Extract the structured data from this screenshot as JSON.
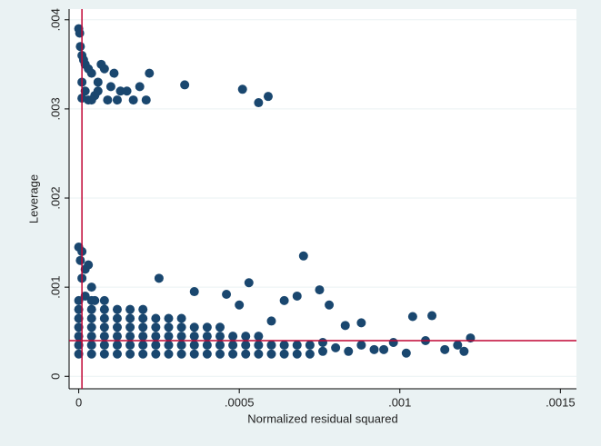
{
  "chart_data": {
    "type": "scatter",
    "x_label": "Normalized residual squared",
    "y_label": "Leverage",
    "color": "#1a476f",
    "reference_color": "#c10534",
    "reference_x": 1e-05,
    "reference_y": 0.0004,
    "xlim": [
      -3e-05,
      0.00155
    ],
    "ylim": [
      -0.00014,
      0.00412
    ],
    "xticks": [
      0,
      {
        "value": 0.0005,
        "label": ".0005"
      },
      {
        "value": 0.001,
        "label": ".001"
      },
      {
        "value": 0.0015,
        "label": ".0015"
      }
    ],
    "yticks": [
      0,
      {
        "value": 0.001,
        "label": ".001"
      },
      {
        "value": 0.002,
        "label": ".002"
      },
      {
        "value": 0.003,
        "label": ".003"
      },
      {
        "value": 0.004,
        "label": ".004"
      }
    ],
    "grid": true,
    "points": [
      [
        0,
        0.0039
      ],
      [
        3e-06,
        0.00385
      ],
      [
        5e-06,
        0.0037
      ],
      [
        1e-05,
        0.0036
      ],
      [
        1.5e-05,
        0.00355
      ],
      [
        2e-05,
        0.0035
      ],
      [
        3e-05,
        0.00345
      ],
      [
        4e-05,
        0.0034
      ],
      [
        1e-05,
        0.0033
      ],
      [
        2e-05,
        0.0032
      ],
      [
        3e-05,
        0.0031
      ],
      [
        5e-05,
        0.00315
      ],
      [
        6e-05,
        0.0033
      ],
      [
        7e-05,
        0.0035
      ],
      [
        8e-05,
        0.00345
      ],
      [
        9e-05,
        0.0031
      ],
      [
        0.0001,
        0.00325
      ],
      [
        0.00011,
        0.0034
      ],
      [
        0.00012,
        0.0031
      ],
      [
        0.00013,
        0.0032
      ],
      [
        0.00015,
        0.0032
      ],
      [
        0.00017,
        0.0031
      ],
      [
        0.00019,
        0.00325
      ],
      [
        0.00021,
        0.0031
      ],
      [
        0.00022,
        0.0034
      ],
      [
        0.00033,
        0.00327
      ],
      [
        0.00051,
        0.00322
      ],
      [
        0.00056,
        0.00307
      ],
      [
        0.00059,
        0.00314
      ],
      [
        4e-05,
        0.0031
      ],
      [
        1e-05,
        0.00312
      ],
      [
        6e-05,
        0.0032
      ],
      [
        0,
        0.00145
      ],
      [
        1e-05,
        0.0014
      ],
      [
        5e-06,
        0.0013
      ],
      [
        2e-05,
        0.0012
      ],
      [
        3e-05,
        0.00125
      ],
      [
        1e-05,
        0.0011
      ],
      [
        4e-05,
        0.001
      ],
      [
        2e-05,
        0.0009
      ],
      [
        5e-05,
        0.00085
      ],
      [
        0,
        0.00025
      ],
      [
        0,
        0.00035
      ],
      [
        0,
        0.00045
      ],
      [
        0,
        0.00055
      ],
      [
        0,
        0.00065
      ],
      [
        0,
        0.00075
      ],
      [
        0,
        0.00085
      ],
      [
        4e-05,
        0.00025
      ],
      [
        4e-05,
        0.00035
      ],
      [
        4e-05,
        0.00045
      ],
      [
        4e-05,
        0.00055
      ],
      [
        4e-05,
        0.00065
      ],
      [
        4e-05,
        0.00075
      ],
      [
        4e-05,
        0.00085
      ],
      [
        8e-05,
        0.00025
      ],
      [
        8e-05,
        0.00035
      ],
      [
        8e-05,
        0.00045
      ],
      [
        8e-05,
        0.00055
      ],
      [
        8e-05,
        0.00065
      ],
      [
        8e-05,
        0.00075
      ],
      [
        8e-05,
        0.00085
      ],
      [
        0.00012,
        0.00025
      ],
      [
        0.00012,
        0.00035
      ],
      [
        0.00012,
        0.00045
      ],
      [
        0.00012,
        0.00055
      ],
      [
        0.00012,
        0.00065
      ],
      [
        0.00012,
        0.00075
      ],
      [
        0.00016,
        0.00025
      ],
      [
        0.00016,
        0.00035
      ],
      [
        0.00016,
        0.00045
      ],
      [
        0.00016,
        0.00055
      ],
      [
        0.00016,
        0.00065
      ],
      [
        0.00016,
        0.00075
      ],
      [
        0.0002,
        0.00025
      ],
      [
        0.0002,
        0.00035
      ],
      [
        0.0002,
        0.00045
      ],
      [
        0.0002,
        0.00055
      ],
      [
        0.0002,
        0.00065
      ],
      [
        0.0002,
        0.00075
      ],
      [
        0.00024,
        0.00025
      ],
      [
        0.00024,
        0.00035
      ],
      [
        0.00024,
        0.00045
      ],
      [
        0.00024,
        0.00055
      ],
      [
        0.00024,
        0.00065
      ],
      [
        0.00028,
        0.00025
      ],
      [
        0.00028,
        0.00035
      ],
      [
        0.00028,
        0.00045
      ],
      [
        0.00028,
        0.00055
      ],
      [
        0.00028,
        0.00065
      ],
      [
        0.00032,
        0.00025
      ],
      [
        0.00032,
        0.00035
      ],
      [
        0.00032,
        0.00045
      ],
      [
        0.00032,
        0.00055
      ],
      [
        0.00032,
        0.00065
      ],
      [
        0.00036,
        0.00025
      ],
      [
        0.00036,
        0.00035
      ],
      [
        0.00036,
        0.00045
      ],
      [
        0.00036,
        0.00055
      ],
      [
        0.0004,
        0.00025
      ],
      [
        0.0004,
        0.00035
      ],
      [
        0.0004,
        0.00045
      ],
      [
        0.0004,
        0.00055
      ],
      [
        0.00044,
        0.00025
      ],
      [
        0.00044,
        0.00035
      ],
      [
        0.00044,
        0.00045
      ],
      [
        0.00044,
        0.00055
      ],
      [
        0.00048,
        0.00025
      ],
      [
        0.00048,
        0.00035
      ],
      [
        0.00048,
        0.00045
      ],
      [
        0.00052,
        0.00025
      ],
      [
        0.00052,
        0.00035
      ],
      [
        0.00052,
        0.00045
      ],
      [
        0.00056,
        0.00025
      ],
      [
        0.00056,
        0.00035
      ],
      [
        0.00056,
        0.00045
      ],
      [
        0.0006,
        0.00025
      ],
      [
        0.0006,
        0.00035
      ],
      [
        0.00064,
        0.00025
      ],
      [
        0.00064,
        0.00035
      ],
      [
        0.00068,
        0.00025
      ],
      [
        0.00068,
        0.00035
      ],
      [
        0.00072,
        0.00025
      ],
      [
        0.00072,
        0.00035
      ],
      [
        0.00076,
        0.00028
      ],
      [
        0.00076,
        0.00038
      ],
      [
        0.0008,
        0.00032
      ],
      [
        0.00084,
        0.00028
      ],
      [
        0.00088,
        0.00035
      ],
      [
        0.00092,
        0.0003
      ],
      [
        0.0007,
        0.00135
      ],
      [
        0.00075,
        0.00097
      ],
      [
        0.00068,
        0.0009
      ],
      [
        0.00053,
        0.00105
      ],
      [
        0.00046,
        0.00092
      ],
      [
        0.00036,
        0.00095
      ],
      [
        0.00025,
        0.0011
      ],
      [
        0.00104,
        0.00067
      ],
      [
        0.0011,
        0.00068
      ],
      [
        0.00122,
        0.00043
      ],
      [
        0.0012,
        0.00028
      ],
      [
        0.00118,
        0.00035
      ],
      [
        0.00108,
        0.0004
      ],
      [
        0.00095,
        0.0003
      ],
      [
        0.00088,
        0.0006
      ],
      [
        0.00083,
        0.00057
      ],
      [
        0.00102,
        0.00026
      ],
      [
        0.00114,
        0.0003
      ],
      [
        0.00098,
        0.00038
      ],
      [
        0.00078,
        0.0008
      ],
      [
        0.00064,
        0.00085
      ],
      [
        0.0006,
        0.00062
      ],
      [
        0.0005,
        0.0008
      ]
    ]
  }
}
